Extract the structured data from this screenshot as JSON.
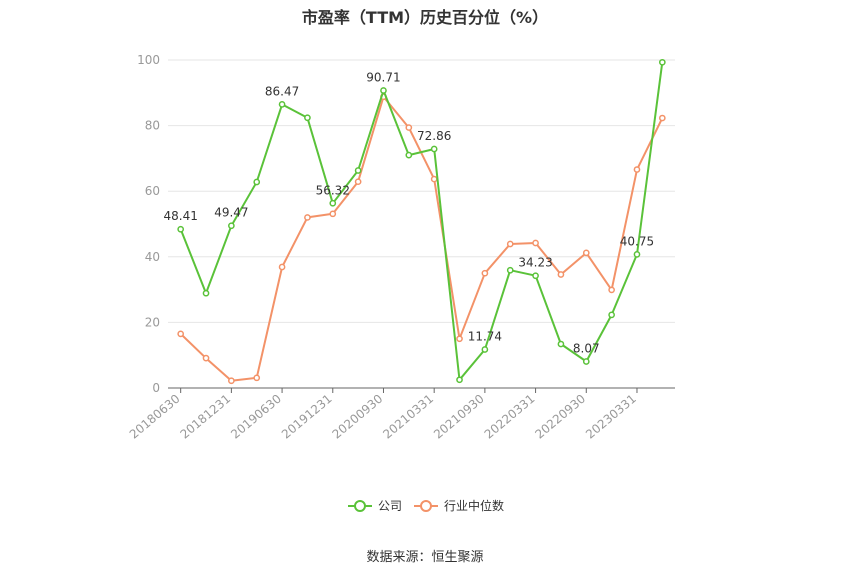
{
  "chart_data": {
    "type": "line",
    "title": "市盈率（TTM）历史百分位（%）",
    "x": [
      "20180630",
      "20180930",
      "20181231",
      "20190331",
      "20190630",
      "20190930",
      "20191231",
      "20200331",
      "20200930",
      "20201231",
      "20210331",
      "20210630",
      "20210930",
      "20211231",
      "20220331",
      "20220630",
      "20220930",
      "20221231",
      "20230331",
      "20230630"
    ],
    "tick_labels": [
      "20180630",
      "20181231",
      "20190630",
      "20191231",
      "20200930",
      "20210331",
      "20210930",
      "20220331",
      "20220930",
      "20230331"
    ],
    "tick_indices": [
      0,
      2,
      4,
      6,
      8,
      10,
      12,
      14,
      16,
      18
    ],
    "ylim": [
      0,
      100
    ],
    "yticks": [
      0,
      20,
      40,
      60,
      80,
      100
    ],
    "grid": true,
    "legend_position": "bottom-center",
    "series": [
      {
        "name": "公司",
        "color": "#5ac239",
        "values": [
          48.41,
          28.9,
          49.47,
          62.8,
          86.47,
          82.4,
          56.32,
          66.3,
          90.71,
          71.0,
          72.86,
          2.5,
          11.74,
          35.9,
          34.23,
          13.4,
          8.07,
          22.3,
          40.75,
          99.3
        ],
        "labels": [
          {
            "index": 0,
            "text": "48.41"
          },
          {
            "index": 2,
            "text": "49.47"
          },
          {
            "index": 4,
            "text": "86.47"
          },
          {
            "index": 6,
            "text": "56.32"
          },
          {
            "index": 8,
            "text": "90.71"
          },
          {
            "index": 10,
            "text": "72.86"
          },
          {
            "index": 12,
            "text": "11.74"
          },
          {
            "index": 14,
            "text": "34.23"
          },
          {
            "index": 16,
            "text": "8.07"
          },
          {
            "index": 18,
            "text": "40.75"
          }
        ]
      },
      {
        "name": "行业中位数",
        "color": "#f39268",
        "values": [
          16.5,
          9.1,
          2.2,
          3.1,
          36.9,
          52.0,
          53.1,
          62.9,
          88.8,
          79.4,
          63.7,
          15.0,
          35.0,
          43.9,
          44.2,
          34.6,
          41.2,
          29.9,
          66.6,
          82.3
        ],
        "labels": []
      }
    ]
  },
  "source": "数据来源：恒生聚源",
  "style": {
    "axis_color": "#666666",
    "grid_color": "#e6e6e6",
    "tick_text_color": "#999999",
    "label_text_color": "#333333"
  }
}
